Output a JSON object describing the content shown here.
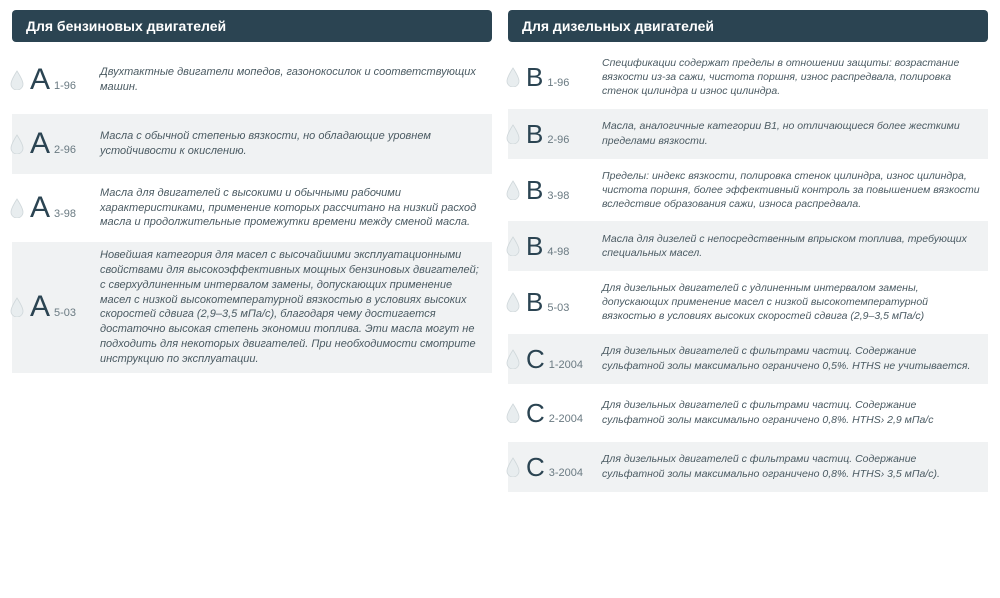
{
  "colors": {
    "header_bg": "#2b4452",
    "header_text": "#ffffff",
    "shaded_row": "#f0f2f3",
    "cat_letter": "#2b4452",
    "sub_text": "#6a7a82",
    "desc_text": "#4a5a62",
    "drop_fill": "#e8edef",
    "drop_stroke": "#cfd7da"
  },
  "left": {
    "title": "Для бензиновых двигателей",
    "rows": [
      {
        "cat": "А",
        "sub": "1-96",
        "desc": "Двухтактные двигатели мопедов, газонокосилок и соответствующих машин.",
        "shaded": false
      },
      {
        "cat": "А",
        "sub": "2-96",
        "desc": "Масла с обычной степенью вязкости, но обладающие уровнем устойчивости к окислению.",
        "shaded": true
      },
      {
        "cat": "А",
        "sub": "3-98",
        "desc": "Масла для двигателей с высокими и обычными рабочими характеристиками, применение которых рассчитано на низкий расход масла и продолжительные промежутки времени между сменой масла.",
        "shaded": false
      },
      {
        "cat": "А",
        "sub": "5-03",
        "desc": "Новейшая категория для масел с высочайшими эксплуатационными свойствами для высокоэффективных мощных бензиновых двигателей; с сверхудлиненным интервалом замены, допускающих применение масел с низкой высокотемпературной вязкостью в условиях высоких скоростей сдвига (2,9–3,5 мПа/с), благодаря чему достигается достаточно высокая степень экономии топлива. Эти масла могут не подходить для некоторых двигателей. При необходимости смотрите инструкцию по эксплуатации.",
        "shaded": true
      }
    ]
  },
  "right": {
    "title": "Для дизельных двигателей",
    "rows": [
      {
        "cat": "В",
        "sub": "1-96",
        "desc": "Спецификации содержат пределы в отношении защиты: возрастание вязкости из-за сажи, чистота поршня, износ распредвала, полировка стенок цилиндра и износ цилиндра.",
        "shaded": false
      },
      {
        "cat": "В",
        "sub": "2-96",
        "desc": "Масла, аналогичные категории В1, но отличающиеся более жесткими пределами вязкости.",
        "shaded": true
      },
      {
        "cat": "В",
        "sub": "3-98",
        "desc": "Пределы: индекс вязкости, полировка стенок цилиндра, износ цилиндра, чистота поршня, более эффективный контроль за повышением вязкости вследствие образования сажи, износа распредвала.",
        "shaded": false
      },
      {
        "cat": "В",
        "sub": "4-98",
        "desc": "Масла для дизелей с непосредственным впрыском топлива, требующих специальных масел.",
        "shaded": true
      },
      {
        "cat": "В",
        "sub": "5-03",
        "desc": "Для дизельных двигателей с удлиненным интервалом замены, допускающих применение масел с низкой высокотемпературной вязкостью в условиях высоких скоростей сдвига (2,9–3,5 мПа/с)",
        "shaded": false
      },
      {
        "cat": "С",
        "sub": "1-2004",
        "desc": "Для дизельных двигателей с фильтрами частиц. Содержание сульфатной золы максимально ограничено 0,5%. HTHS не учитывается.",
        "shaded": true
      },
      {
        "cat": "С",
        "sub": "2-2004",
        "desc": "Для дизельных двигателей с фильтрами частиц. Содержание сульфатной золы максимально ограничено 0,8%. HTHS› 2,9 мПа/с",
        "shaded": false
      },
      {
        "cat": "С",
        "sub": "3-2004",
        "desc": "Для дизельных двигателей с фильтрами частиц. Содержание сульфатной золы максимально ограничено 0,8%. HTHS› 3,5 мПа/с).",
        "shaded": true
      }
    ]
  }
}
